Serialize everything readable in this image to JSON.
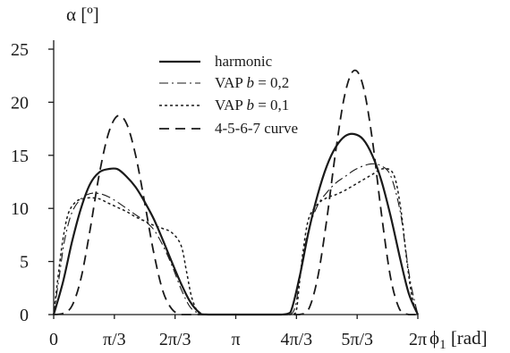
{
  "chart_data": {
    "type": "line",
    "ylabel": "α [º]",
    "xlabel_parts": [
      "ϕ",
      "1",
      " [rad]"
    ],
    "y_ticks": [
      0,
      5,
      10,
      15,
      20,
      25
    ],
    "y_tick_labels": [
      "0",
      "5",
      "10",
      "15",
      "20",
      "25"
    ],
    "ylim": [
      0,
      25
    ],
    "xlim_over_pi": [
      0,
      2
    ],
    "x_ticks_over_pi": [
      0,
      0.3333,
      0.6667,
      1,
      1.3333,
      1.6667,
      2
    ],
    "x_tick_labels": [
      "0",
      "π/3",
      "2π/3",
      "π",
      "4π/3",
      "5π/3",
      "2π"
    ],
    "series": [
      {
        "name": "harmonic",
        "style": "solid",
        "x_over_pi": [
          0,
          0.05,
          0.1,
          0.15,
          0.2,
          0.25,
          0.3,
          0.35,
          0.4,
          0.45,
          0.5,
          0.55,
          0.6,
          0.65,
          0.7,
          0.75,
          0.8,
          0.85,
          1.15,
          1.2,
          1.25,
          1.3,
          1.35,
          1.4,
          1.45,
          1.5,
          1.55,
          1.6,
          1.65,
          1.7,
          1.75,
          1.8,
          1.85,
          1.9,
          1.95,
          2.0
        ],
        "y": [
          0,
          3.0,
          6.8,
          10.0,
          12.3,
          13.4,
          13.7,
          13.7,
          13.0,
          12.0,
          10.6,
          9.0,
          7.0,
          4.9,
          2.9,
          1.2,
          0.2,
          0,
          0,
          0,
          0,
          0.2,
          3.5,
          7.8,
          11.3,
          14.0,
          15.8,
          16.8,
          17.0,
          16.5,
          15.0,
          12.6,
          9.3,
          5.5,
          2.0,
          0
        ]
      },
      {
        "name": "VAP b = 0,2",
        "style": "dashdot",
        "x_over_pi": [
          0,
          0.03,
          0.06,
          0.1,
          0.15,
          0.2,
          0.25,
          0.3,
          0.35,
          0.4,
          0.45,
          0.5,
          0.55,
          0.6,
          0.65,
          0.7,
          0.75,
          0.8,
          0.85,
          1.15,
          1.2,
          1.25,
          1.3,
          1.33,
          1.36,
          1.4,
          1.45,
          1.5,
          1.55,
          1.6,
          1.65,
          1.7,
          1.75,
          1.8,
          1.85,
          1.9,
          1.93,
          1.96,
          2.0
        ],
        "y": [
          0,
          3.5,
          7.0,
          9.6,
          10.9,
          11.4,
          11.4,
          11.1,
          10.6,
          10.0,
          9.4,
          8.8,
          8.0,
          6.5,
          4.6,
          2.4,
          0.7,
          0.1,
          0,
          0,
          0,
          0,
          0,
          1.0,
          4.6,
          8.0,
          10.3,
          11.5,
          12.4,
          13.0,
          13.6,
          14.0,
          14.2,
          14.0,
          13.1,
          10.0,
          6.5,
          3.0,
          0
        ]
      },
      {
        "name": "VAP b = 0,1",
        "style": "dotted",
        "x_over_pi": [
          0,
          0.02,
          0.05,
          0.08,
          0.12,
          0.16,
          0.2,
          0.25,
          0.3,
          0.35,
          0.4,
          0.45,
          0.5,
          0.55,
          0.6,
          0.65,
          0.7,
          0.73,
          0.76,
          0.8,
          0.85,
          1.15,
          1.2,
          1.25,
          1.3,
          1.33,
          1.35,
          1.37,
          1.4,
          1.45,
          1.5,
          1.55,
          1.6,
          1.65,
          1.7,
          1.75,
          1.8,
          1.85,
          1.88,
          1.91,
          1.94,
          1.97,
          2.0
        ],
        "y": [
          0,
          3.0,
          7.0,
          9.5,
          10.6,
          10.9,
          11.0,
          10.9,
          10.5,
          10.1,
          9.7,
          9.2,
          8.8,
          8.4,
          8.1,
          7.7,
          6.5,
          4.0,
          1.5,
          0.1,
          0,
          0,
          0,
          0,
          0,
          0.2,
          3.0,
          6.0,
          9.0,
          10.4,
          11.0,
          11.3,
          11.7,
          12.2,
          12.7,
          13.2,
          13.7,
          13.6,
          12.5,
          9.5,
          5.0,
          1.5,
          0
        ]
      },
      {
        "name": "4-5-6-7 curve",
        "style": "dashed",
        "x_over_pi": [
          0,
          0.05,
          0.1,
          0.15,
          0.2,
          0.25,
          0.3,
          0.35,
          0.4,
          0.45,
          0.5,
          0.55,
          0.6,
          0.65,
          0.7,
          0.75,
          0.8,
          0.85,
          1.15,
          1.2,
          1.25,
          1.3,
          1.35,
          1.4,
          1.45,
          1.5,
          1.55,
          1.6,
          1.65,
          1.7,
          1.75,
          1.8,
          1.85,
          1.9,
          1.95,
          2.0
        ],
        "y": [
          0,
          0.1,
          0.8,
          3.4,
          8.0,
          13.2,
          17.0,
          18.7,
          18.0,
          15.0,
          10.5,
          5.8,
          2.2,
          0.5,
          0,
          0,
          0,
          0,
          0,
          0,
          0,
          0,
          0,
          0.5,
          3.5,
          9.0,
          15.5,
          20.8,
          23.0,
          21.5,
          16.5,
          9.5,
          3.5,
          0.5,
          0,
          0
        ]
      }
    ],
    "legend_position": "top-center"
  }
}
